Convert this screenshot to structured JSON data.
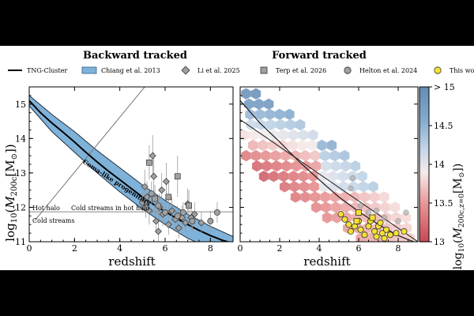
{
  "panel_titles": [
    "Backward tracked",
    "Forward tracked"
  ],
  "legend": [
    {
      "label": "TNG-Cluster",
      "symbol": "line",
      "color": "#000000"
    },
    {
      "label": "Chiang et al. 2013",
      "symbol": "band",
      "color": "#7fb2d9"
    },
    {
      "label": "Li et al. 2025",
      "symbol": "diamond",
      "color": "#a0a0a0"
    },
    {
      "label": "Terp et al. 2026",
      "symbol": "square",
      "color": "#a0a0a0"
    },
    {
      "label": "Helton et al. 2024",
      "symbol": "circle",
      "color": "#a0a0a0"
    },
    {
      "label": "This work",
      "symbol": "circle",
      "color": "#f5e230"
    }
  ],
  "annotations": {
    "coma": "Coma-like progenitors",
    "hot_halo_left": "Hot halo",
    "cold_streams_hot": "Cold streams in hot halo",
    "cold_streams": "Cold streams"
  },
  "colorbar": {
    "label": "log10(M200c,z=0[M⊙])",
    "ticks": [
      "> 15",
      "14.5",
      "14",
      "13.5",
      "13"
    ],
    "tick_values": [
      15,
      14.5,
      14,
      13.5,
      13
    ],
    "range": [
      13,
      15
    ]
  },
  "chart_data": [
    {
      "type": "line",
      "title": "Backward tracked",
      "xlabel": "redshift",
      "ylabel": "log10(M200c[M⊙])",
      "xlim": [
        0,
        9
      ],
      "ylim": [
        11,
        15.5
      ],
      "xticks": [
        0,
        2,
        4,
        6,
        8
      ],
      "yticks": [
        11,
        12,
        13,
        14,
        15
      ],
      "tng_median": {
        "x": [
          0,
          0.5,
          1,
          1.5,
          2,
          2.5,
          3,
          3.5,
          4,
          4.5,
          5,
          5.5,
          6,
          6.5,
          7,
          7.5,
          8,
          8.5,
          9
        ],
        "y": [
          15.1,
          14.75,
          14.45,
          14.18,
          13.9,
          13.6,
          13.32,
          13.05,
          12.8,
          12.55,
          12.3,
          12.08,
          11.88,
          11.68,
          11.5,
          11.33,
          11.18,
          11.05,
          10.95
        ]
      },
      "chiang_band": {
        "x": [
          0,
          1,
          2,
          3,
          4,
          5,
          6,
          7,
          8,
          9
        ],
        "upper": [
          15.25,
          14.7,
          14.2,
          13.65,
          13.15,
          12.65,
          12.2,
          11.8,
          11.45,
          11.15
        ],
        "lower": [
          14.95,
          14.2,
          13.6,
          13.0,
          12.45,
          11.95,
          11.5,
          11.1,
          10.8,
          10.55
        ]
      },
      "threshold_lines": {
        "hot_halo_y": 11.87,
        "cold_streams_y": 11.78,
        "diagonal_x": [
          0.25,
          5.1
        ],
        "diagonal_y": [
          11.62,
          15.5
        ]
      },
      "li_2025": [
        {
          "x": 5.1,
          "y": 12.6,
          "err": 0.5
        },
        {
          "x": 5.2,
          "y": 12.3,
          "err": 0.45
        },
        {
          "x": 5.3,
          "y": 11.9,
          "err": 0.4
        },
        {
          "x": 5.45,
          "y": 13.5,
          "err": 0.6
        },
        {
          "x": 5.5,
          "y": 12.9,
          "err": 0.7
        },
        {
          "x": 5.6,
          "y": 11.6,
          "err": 0.35
        },
        {
          "x": 5.7,
          "y": 11.3,
          "err": 0.3
        },
        {
          "x": 5.75,
          "y": 12.0,
          "err": 0.4
        },
        {
          "x": 5.85,
          "y": 12.5,
          "err": 0.5
        },
        {
          "x": 5.9,
          "y": 11.8,
          "err": 0.35
        },
        {
          "x": 6.05,
          "y": 12.75,
          "err": 0.55
        },
        {
          "x": 6.15,
          "y": 11.5,
          "err": 0.3
        },
        {
          "x": 6.3,
          "y": 11.9,
          "err": 0.4
        },
        {
          "x": 6.45,
          "y": 11.65,
          "err": 0.3
        },
        {
          "x": 6.6,
          "y": 11.4,
          "err": 0.3
        },
        {
          "x": 6.75,
          "y": 11.7,
          "err": 0.35
        },
        {
          "x": 6.9,
          "y": 11.55,
          "err": 0.3
        },
        {
          "x": 7.0,
          "y": 12.1,
          "err": 0.45
        },
        {
          "x": 7.15,
          "y": 11.7,
          "err": 0.35
        },
        {
          "x": 7.3,
          "y": 11.8,
          "err": 0.35
        },
        {
          "x": 7.6,
          "y": 11.55,
          "err": 0.3
        }
      ],
      "terp_2026": [
        {
          "x": 5.3,
          "y": 13.3,
          "err": 0.5
        },
        {
          "x": 5.55,
          "y": 12.25,
          "err": 0.4
        },
        {
          "x": 6.15,
          "y": 12.3,
          "err": 0.45
        },
        {
          "x": 6.55,
          "y": 12.9,
          "err": 0.6
        },
        {
          "x": 7.05,
          "y": 12.05,
          "err": 0.45
        }
      ],
      "helton_2024": [
        {
          "x": 5.0,
          "y": 12.15,
          "err": 0.3
        },
        {
          "x": 5.15,
          "y": 12.0,
          "err": 0.3
        },
        {
          "x": 5.4,
          "y": 12.4,
          "err": 0.35
        },
        {
          "x": 5.7,
          "y": 12.05,
          "err": 0.3
        },
        {
          "x": 6.0,
          "y": 11.85,
          "err": 0.3
        },
        {
          "x": 6.55,
          "y": 11.75,
          "err": 0.3
        },
        {
          "x": 6.8,
          "y": 11.85,
          "err": 0.3
        },
        {
          "x": 7.2,
          "y": 11.6,
          "err": 0.3
        },
        {
          "x": 8.0,
          "y": 11.6,
          "err": 0.3
        },
        {
          "x": 8.3,
          "y": 11.85,
          "err": 0.3
        }
      ]
    },
    {
      "type": "heatmap",
      "title": "Forward tracked",
      "xlabel": "redshift",
      "xlim": [
        0,
        9
      ],
      "ylim": [
        11,
        15.5
      ],
      "xticks": [
        0,
        2,
        4,
        6,
        8
      ],
      "yticks": [
        11,
        12,
        13,
        14,
        15
      ],
      "tng_median": {
        "x": [
          0,
          1,
          2,
          3,
          4,
          5,
          6,
          7,
          8,
          9
        ],
        "y": [
          15.1,
          14.45,
          13.9,
          13.32,
          12.8,
          12.3,
          11.88,
          11.5,
          11.18,
          10.95
        ]
      },
      "tng_diagonal": {
        "x": [
          0,
          9
        ],
        "y": [
          14.55,
          11.0
        ]
      },
      "hex_rows": [
        {
          "y": 15.3,
          "xmin": 0.3,
          "xmax": 1.2,
          "c0": 14.85,
          "slope": 0.05
        },
        {
          "y": 15.0,
          "xmin": 0.2,
          "xmax": 1.8,
          "c0": 14.7,
          "slope": 0.08
        },
        {
          "y": 14.7,
          "xmin": 0.5,
          "xmax": 2.6,
          "c0": 14.4,
          "slope": 0.1
        },
        {
          "y": 14.4,
          "xmin": 0.3,
          "xmax": 3.4,
          "c0": 14.1,
          "slope": 0.12
        },
        {
          "y": 14.1,
          "xmin": 0.2,
          "xmax": 4.1,
          "c0": 13.8,
          "slope": 0.14
        },
        {
          "y": 13.8,
          "xmin": 0.4,
          "xmax": 4.8,
          "c0": 13.55,
          "slope": 0.16
        },
        {
          "y": 13.5,
          "xmin": 0.3,
          "xmax": 5.4,
          "c0": 13.3,
          "slope": 0.17
        },
        {
          "y": 13.2,
          "xmin": 0.6,
          "xmax": 6.0,
          "c0": 13.1,
          "slope": 0.18
        },
        {
          "y": 12.9,
          "xmin": 1.2,
          "xmax": 6.5,
          "c0": 13.0,
          "slope": 0.18
        },
        {
          "y": 12.6,
          "xmin": 2.0,
          "xmax": 7.0,
          "c0": 13.0,
          "slope": 0.18
        },
        {
          "y": 12.3,
          "xmin": 2.8,
          "xmax": 7.6,
          "c0": 13.0,
          "slope": 0.17
        },
        {
          "y": 12.0,
          "xmin": 3.6,
          "xmax": 8.1,
          "c0": 13.0,
          "slope": 0.16
        },
        {
          "y": 11.7,
          "xmin": 4.4,
          "xmax": 8.5,
          "c0": 13.0,
          "slope": 0.15
        },
        {
          "y": 11.4,
          "xmin": 5.2,
          "xmax": 8.9,
          "c0": 13.0,
          "slope": 0.14
        },
        {
          "y": 11.1,
          "xmin": 6.1,
          "xmax": 8.9,
          "c0": 13.0,
          "slope": 0.13
        }
      ],
      "helton_2024": [
        {
          "x": 5.6,
          "y": 12.55
        },
        {
          "x": 5.7,
          "y": 12.85
        },
        {
          "x": 6.1,
          "y": 12.05
        },
        {
          "x": 6.5,
          "y": 11.85
        },
        {
          "x": 6.9,
          "y": 11.9
        },
        {
          "x": 7.3,
          "y": 11.7
        },
        {
          "x": 8.0,
          "y": 11.6
        },
        {
          "x": 8.4,
          "y": 11.85
        }
      ],
      "this_work": [
        {
          "x": 5.1,
          "y": 11.8
        },
        {
          "x": 5.3,
          "y": 11.65
        },
        {
          "x": 5.5,
          "y": 11.5
        },
        {
          "x": 5.6,
          "y": 11.3
        },
        {
          "x": 5.8,
          "y": 11.45
        },
        {
          "x": 6.0,
          "y": 11.6
        },
        {
          "x": 6.1,
          "y": 11.35
        },
        {
          "x": 6.3,
          "y": 11.2
        },
        {
          "x": 6.5,
          "y": 11.45
        },
        {
          "x": 6.6,
          "y": 11.6
        },
        {
          "x": 6.8,
          "y": 11.3
        },
        {
          "x": 6.9,
          "y": 11.15
        },
        {
          "x": 7.0,
          "y": 11.45
        },
        {
          "x": 7.1,
          "y": 11.55
        },
        {
          "x": 7.2,
          "y": 11.25
        },
        {
          "x": 7.3,
          "y": 11.1
        },
        {
          "x": 7.4,
          "y": 11.35
        },
        {
          "x": 7.6,
          "y": 11.2
        },
        {
          "x": 7.9,
          "y": 11.25
        },
        {
          "x": 8.3,
          "y": 11.3
        }
      ]
    }
  ]
}
